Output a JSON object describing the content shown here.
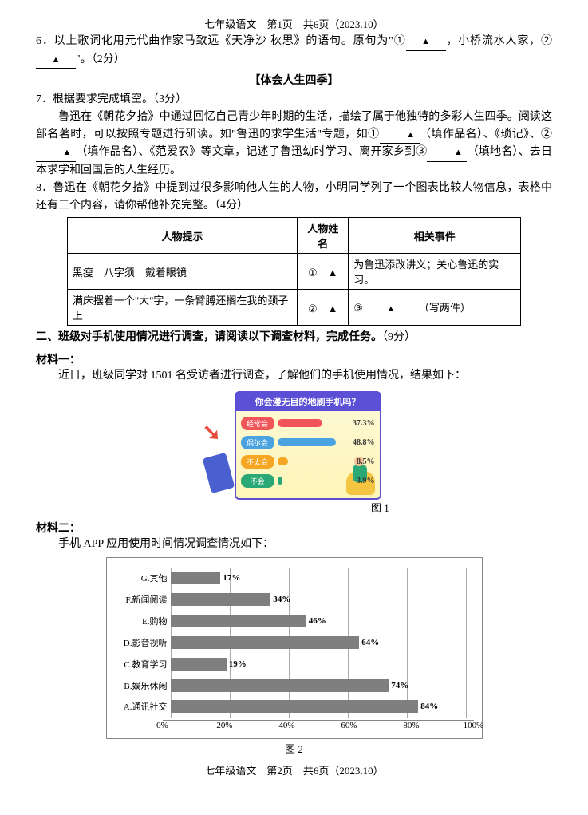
{
  "header": "七年级语文　第1页　共6页（2023.10）",
  "q6": {
    "text_a": "6．以上歌词化用元代曲作家马致远《天净沙 秋思》的语句。原句为\"①",
    "text_b": "，小桥流水人家，②",
    "text_c": "\"。（2分）"
  },
  "section_title": "【体会人生四季】",
  "q7": {
    "lead": "7．根据要求完成填空。（3分）",
    "body_a": "鲁迅在《朝花夕拾》中通过回忆自己青少年时期的生活，描绘了属于他独特的多彩人生四季。阅读这部名著时，可以按照专题进行研读。如\"鲁迅的求学生活\"专题，如①",
    "body_b": "（填作品名）、《琐记》、②",
    "body_c": "（填作品名）、《范爱农》等文章，记述了鲁迅幼时学习、离开家乡到③",
    "body_d": "（填地名）、去日本求学和回国后的人生经历。"
  },
  "q8": {
    "text": "8．鲁迅在《朝花夕拾》中提到过很多影响他人生的人物，小明同学列了一个图表比较人物信息，表格中还有三个内容，请你帮他补充完整。（4分）"
  },
  "table": {
    "h1": "人物提示",
    "h2": "人物姓名",
    "h3": "相关事件",
    "r1c1": "黑瘦　八字须　戴着眼镜",
    "r1c2": "①　▲",
    "r1c3": "为鲁迅添改讲义；关心鲁迅的实习。",
    "r2c1": "满床摆着一个\"大\"字，一条臂膊还搁在我的颈子上",
    "r2c2": "②　▲",
    "r2c3_a": "③",
    "r2c3_b": "（写两件）"
  },
  "sec2": {
    "title": "二、班级对手机使用情况进行调查，请阅读以下调查材料，完成任务。",
    "score": "（9分）",
    "m1_label": "材料一：",
    "m1_text": "近日，班级同学对 1501 名受访者进行调查，了解他们的手机使用情况，结果如下：",
    "m2_label": "材料二：",
    "m2_text": "手机 APP 应用使用时间情况调查情况如下："
  },
  "chart1": {
    "title": "你会漫无目的地刷手机吗？",
    "background_color": "#fef9d8",
    "border_color": "#5b4fd6",
    "rows": [
      {
        "label": "经常会",
        "value": 37.3,
        "bar_color": "#f0555a",
        "label_bg": "#f0555a"
      },
      {
        "label": "偶尔会",
        "value": 48.8,
        "bar_color": "#4aa3e0",
        "label_bg": "#4aa3e0"
      },
      {
        "label": "不太会",
        "value": 8.5,
        "bar_color": "#f5a623",
        "label_bg": "#f5a623"
      },
      {
        "label": "不会",
        "value": 3.9,
        "bar_color": "#2aa876",
        "label_bg": "#2aa876"
      }
    ],
    "max_value": 60,
    "caption": "图 1"
  },
  "chart2": {
    "categories": [
      "G.其他",
      "F.新闻阅读",
      "E.购物",
      "D.影音视听",
      "C.教育学习",
      "B.娱乐休闲",
      "A.通讯社交"
    ],
    "values": [
      17,
      34,
      46,
      64,
      19,
      74,
      84
    ],
    "bar_color": "#7f7f7f",
    "grid_color": "#aaaaaa",
    "ticks": [
      0,
      20,
      40,
      60,
      80,
      100
    ],
    "tick_labels": [
      "0%",
      "20%",
      "40%",
      "60%",
      "80%",
      "100%"
    ],
    "xmax": 100,
    "caption": "图 2"
  },
  "footer": "七年级语文　第2页　共6页（2023.10）"
}
